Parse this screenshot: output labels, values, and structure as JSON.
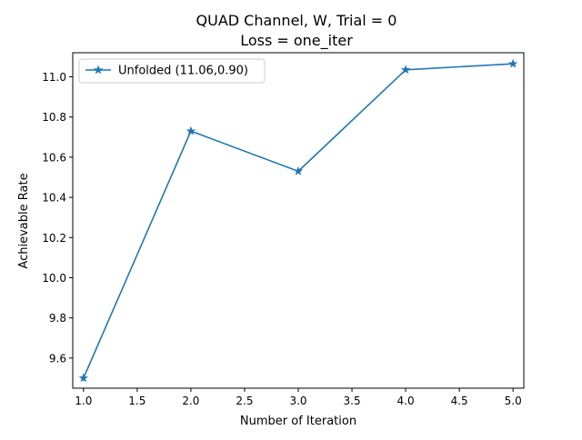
{
  "chart_data": {
    "type": "line",
    "title": "QUAD Channel, W, Trial = 0",
    "subtitle": "Loss = one_iter",
    "xlabel": "Number of Iteration",
    "ylabel": "Achievable Rate",
    "x": [
      1,
      2,
      3,
      4,
      5
    ],
    "series": [
      {
        "name": "Unfolded (11.06,0.90)",
        "values": [
          9.5,
          10.73,
          10.53,
          11.035,
          11.065
        ],
        "color": "#1f77b4",
        "marker": "star"
      }
    ],
    "xlim": [
      0.9,
      5.1
    ],
    "ylim": [
      9.45,
      11.12
    ],
    "xticks": [
      "1.0",
      "1.5",
      "2.0",
      "2.5",
      "3.0",
      "3.5",
      "4.0",
      "4.5",
      "5.0"
    ],
    "yticks": [
      "9.6",
      "9.8",
      "10.0",
      "10.2",
      "10.4",
      "10.6",
      "10.8",
      "11.0"
    ],
    "grid": false,
    "legend_position": "top-left"
  }
}
